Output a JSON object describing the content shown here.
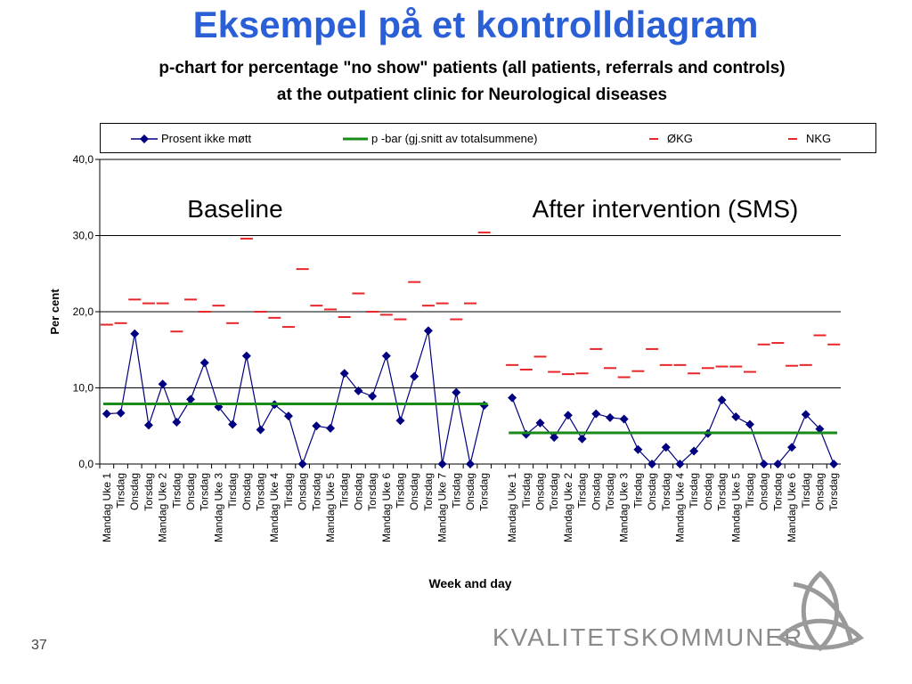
{
  "slide": {
    "title": "Eksempel på et kontrolldiagram",
    "subtitle_line1": "p-chart for percentage \"no show\" patients (all patients, referrals and controls)",
    "subtitle_line2": "at the outpatient clinic for Neurological diseases",
    "page_number": "37",
    "logo_text": "KVALITETSKOMMUNER"
  },
  "legend": [
    {
      "label": "Prosent ikke møtt",
      "color": "#000080",
      "marker": "diamond-line"
    },
    {
      "label": "p -bar (gj.snitt av totalsummene)",
      "color": "#1a8a1a",
      "marker": "thick-line"
    },
    {
      "label": "ØKG",
      "color": "#e8262a",
      "marker": "dash"
    },
    {
      "label": "NKG",
      "color": "#e8262a",
      "marker": "dash"
    }
  ],
  "chart_data": {
    "type": "line",
    "title": "",
    "xlabel": "Week and day",
    "ylabel": "Per cent",
    "ylim": [
      0,
      40
    ],
    "yticks": [
      "0,0",
      "10,0",
      "20,0",
      "30,0",
      "40,0"
    ],
    "grid": true,
    "legend_position": "top",
    "annotations": [
      "Baseline",
      "After intervention (SMS)"
    ],
    "categories": [
      "Mandag Uke 1",
      "Tirsdag",
      "Onsdag",
      "Torsdag",
      "Mandag Uke 2",
      "Tirsdag",
      "Onsdag",
      "Torsdag",
      "Mandag Uke 3",
      "Tirsdag",
      "Onsdag",
      "Torsdag",
      "Mandag Uke 4",
      "Tirsdag",
      "Onsdag",
      "Torsdag",
      "Mandag Uke 5",
      "Tirsdag",
      "Onsdag",
      "Torsdag",
      "Mandag Uke 6",
      "Tirsdag",
      "Onsdag",
      "Torsdag",
      "Mandag Uke 7",
      "Tirsdag",
      "Onsdag",
      "Torsdag",
      "",
      "Mandag Uke 1",
      "Tirsdag",
      "Onsdag",
      "Torsdag",
      "Mandag Uke 2",
      "Tirsdag",
      "Onsdag",
      "Torsdag",
      "Mandag Uke 3",
      "Tirsdag",
      "Onsdag",
      "Torsdag",
      "Mandag Uke 4",
      "Tirsdag",
      "Onsdag",
      "Torsdag",
      "Mandag Uke 5",
      "Tirsdag",
      "Onsdag",
      "Torsdag",
      "Mandag Uke 6",
      "Tirsdag",
      "Onsdag",
      "Torsdag"
    ],
    "series": [
      {
        "name": "Prosent ikke møtt",
        "color": "#000080",
        "values": [
          6.6,
          6.7,
          17.1,
          5.1,
          10.5,
          5.5,
          8.5,
          13.3,
          7.5,
          5.2,
          14.2,
          4.5,
          7.8,
          6.3,
          0.0,
          5.0,
          4.7,
          11.9,
          9.6,
          8.9,
          14.2,
          5.7,
          11.5,
          17.5,
          0.0,
          9.4,
          0.0,
          7.7,
          null,
          8.7,
          3.9,
          5.4,
          3.5,
          6.4,
          3.3,
          6.6,
          6.1,
          5.9,
          1.9,
          0.0,
          2.2,
          0.0,
          1.7,
          4.0,
          8.4,
          6.2,
          5.2,
          0.0,
          0.0,
          2.2,
          6.5,
          4.6,
          0.0
        ]
      },
      {
        "name": "p -bar (gj.snitt av totalsummene)",
        "color": "#1a8a1a",
        "values": [
          7.9,
          7.9,
          7.9,
          7.9,
          7.9,
          7.9,
          7.9,
          7.9,
          7.9,
          7.9,
          7.9,
          7.9,
          7.9,
          7.9,
          7.9,
          7.9,
          7.9,
          7.9,
          7.9,
          7.9,
          7.9,
          7.9,
          7.9,
          7.9,
          7.9,
          7.9,
          7.9,
          7.9,
          null,
          4.1,
          4.1,
          4.1,
          4.1,
          4.1,
          4.1,
          4.1,
          4.1,
          4.1,
          4.1,
          4.1,
          4.1,
          4.1,
          4.1,
          4.1,
          4.1,
          4.1,
          4.1,
          4.1,
          4.1,
          4.1,
          4.1,
          4.1,
          4.1
        ]
      },
      {
        "name": "ØKG",
        "color": "#e8262a",
        "values": [
          18.3,
          18.5,
          21.6,
          21.1,
          21.1,
          17.4,
          21.6,
          20.0,
          20.8,
          18.5,
          29.6,
          20.0,
          19.2,
          18.0,
          25.6,
          20.8,
          20.3,
          19.3,
          22.4,
          20.0,
          19.6,
          19.0,
          23.9,
          20.8,
          21.1,
          19.0,
          21.1,
          30.4,
          null,
          13.0,
          12.4,
          14.1,
          12.1,
          11.8,
          11.9,
          15.1,
          12.6,
          11.4,
          12.2,
          15.1,
          13.0,
          13.0,
          11.9,
          12.6,
          12.8,
          12.8,
          12.1,
          15.7,
          15.9,
          12.9,
          13.0,
          16.9,
          15.7
        ]
      }
    ]
  }
}
